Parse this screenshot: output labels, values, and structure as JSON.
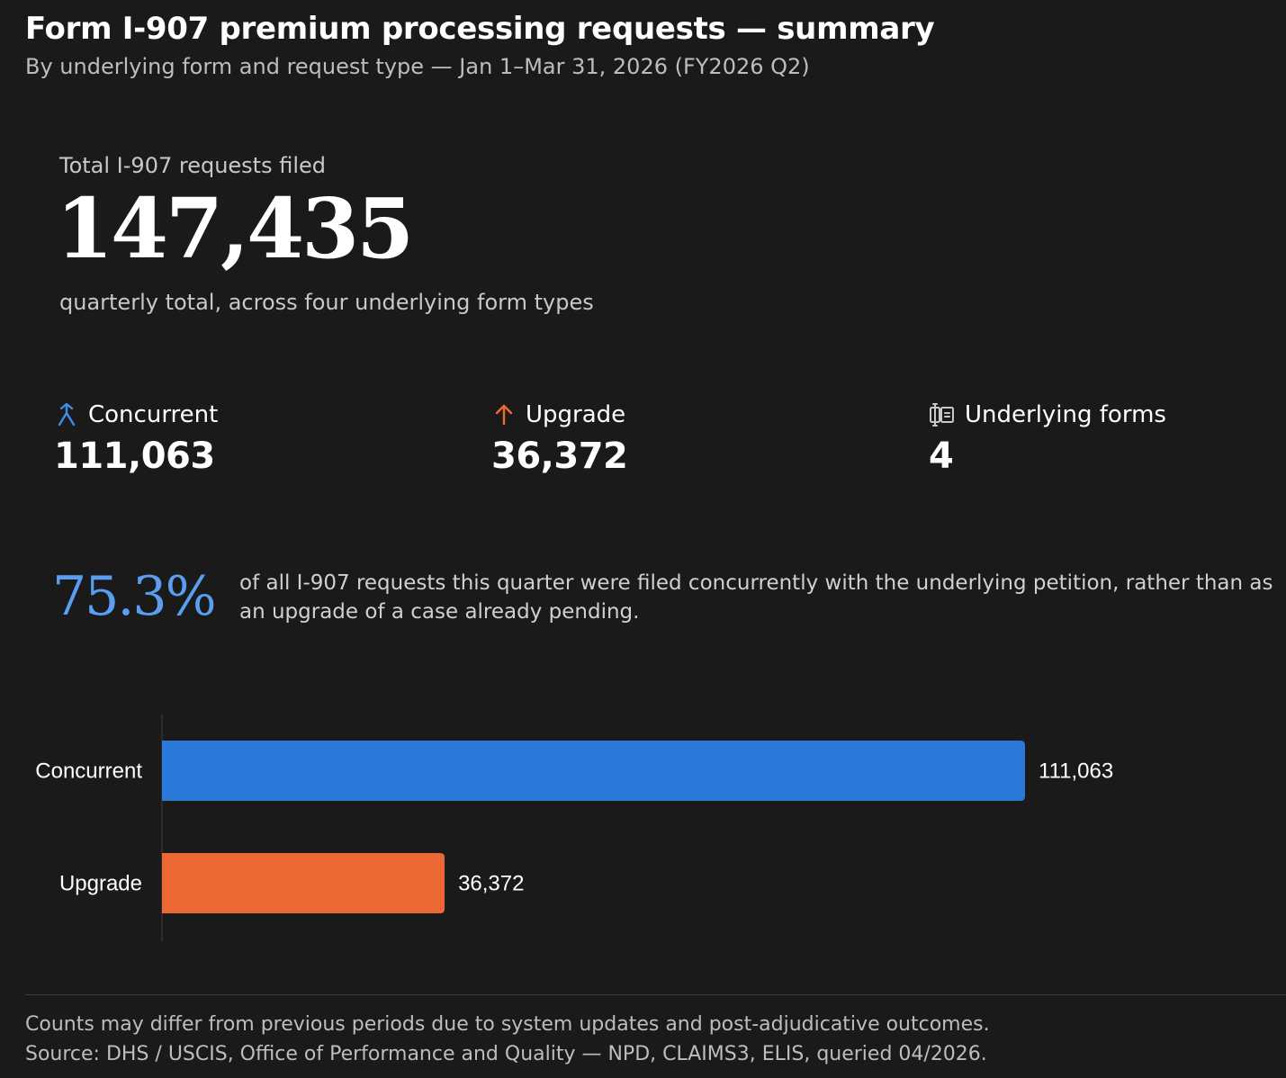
{
  "header": {
    "title": "Form I-907 premium processing requests — summary",
    "subtitle": "By underlying form and request type — Jan 1–Mar 31, 2026 (FY2026 Q2)"
  },
  "total": {
    "label": "Total I-907 requests filed",
    "value": "147,435",
    "note": "quarterly total, across four underlying form types"
  },
  "kpis": [
    {
      "icon": "merge-arrow-icon",
      "label": "Concurrent",
      "value": "111,063",
      "color": "#3d8ee8"
    },
    {
      "icon": "arrow-up-icon",
      "label": "Upgrade",
      "value": "36,372",
      "color": "#f06a35"
    },
    {
      "icon": "forms-icon",
      "label": "Underlying forms",
      "value": "4",
      "color": "#c8c8c8"
    }
  ],
  "share": {
    "value": "75.3%",
    "text": "of all I-907 requests this quarter were filed concurrently with the underlying petition, rather than as an upgrade of a case already pending."
  },
  "chart_data": {
    "type": "bar",
    "orientation": "horizontal",
    "categories": [
      "Concurrent",
      "Upgrade"
    ],
    "values": [
      111063,
      36372
    ],
    "value_labels": [
      "111,063",
      "36,372"
    ],
    "colors": [
      "#2a78d8",
      "#ec6834"
    ],
    "title": "",
    "xlabel": "",
    "ylabel": "",
    "xlim": [
      0,
      111063
    ],
    "grid": false
  },
  "footer": {
    "note": "Counts may differ from previous periods due to system updates and post-adjudicative outcomes.",
    "source": "Source: DHS / USCIS, Office of Performance and Quality — NPD, CLAIMS3, ELIS, queried 04/2026."
  }
}
